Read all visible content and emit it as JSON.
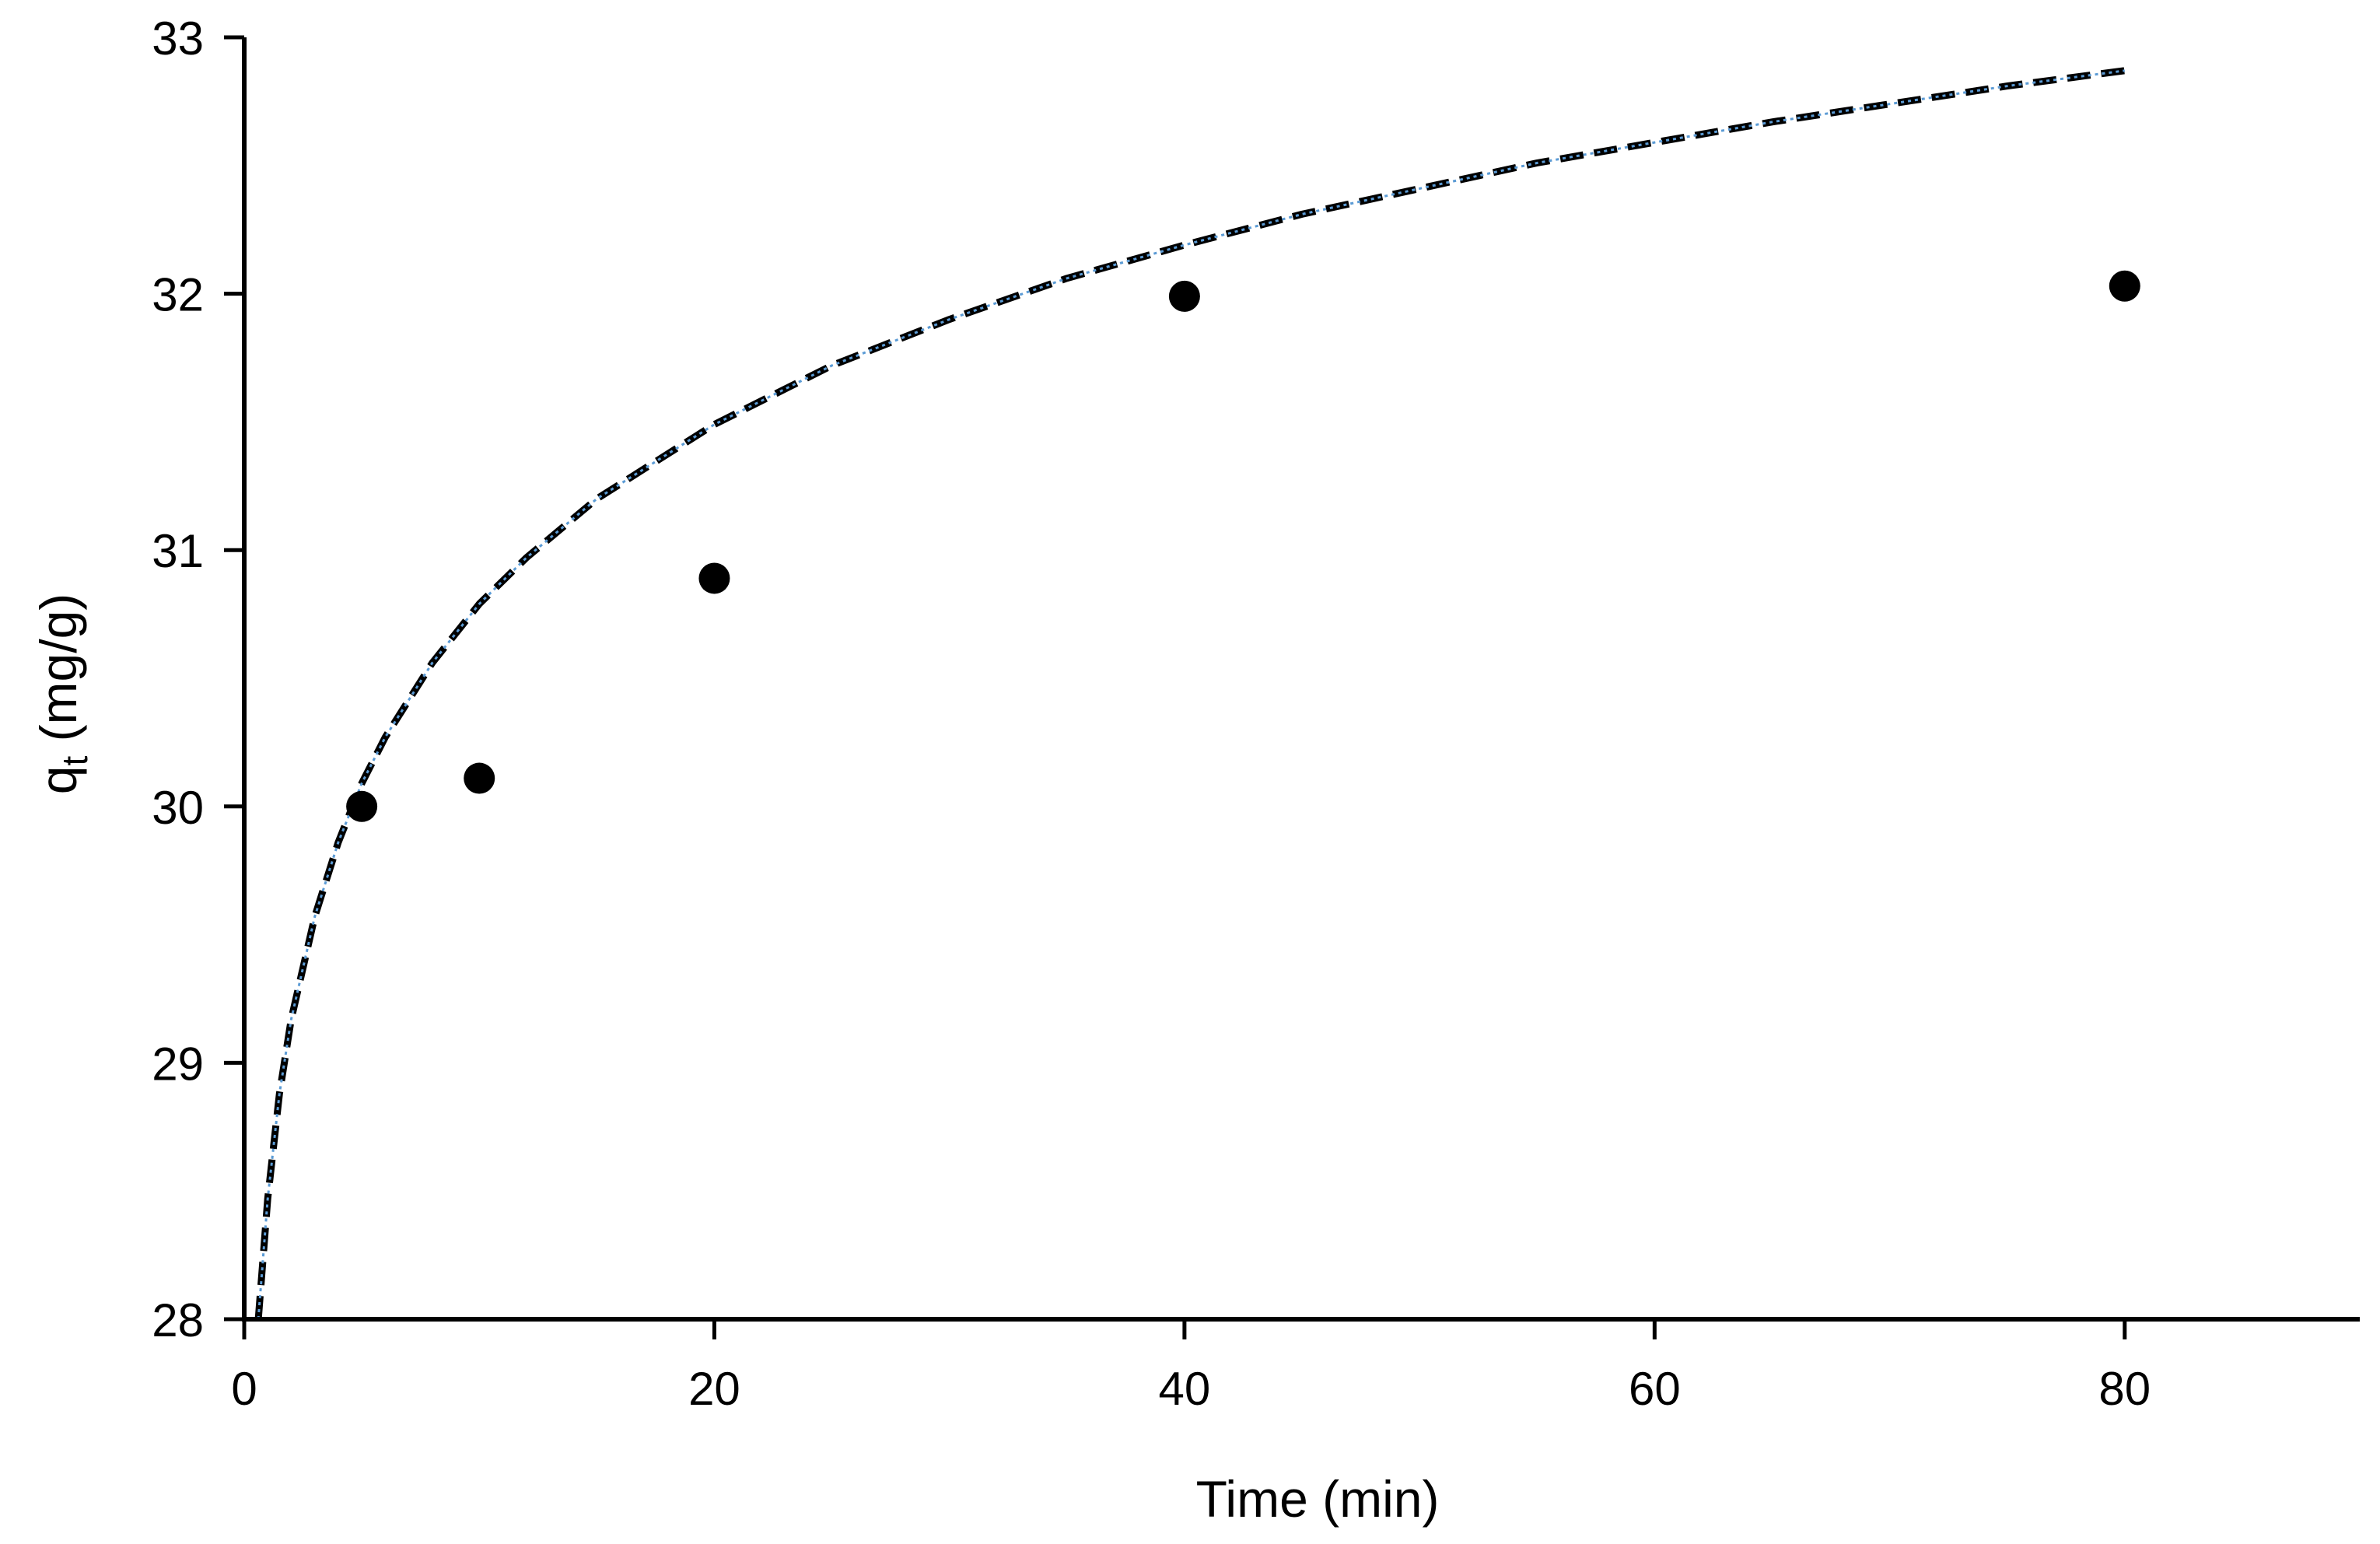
{
  "chart_data": {
    "type": "scatter",
    "xlabel": "Time (min)",
    "ylabel": {
      "main": "q",
      "subscript": "t",
      "unit": " (mg/g)"
    },
    "xlim": [
      0,
      90
    ],
    "ylim": [
      28,
      33
    ],
    "x_ticks": [
      0,
      20,
      40,
      60,
      80
    ],
    "x_tick_labels": [
      "0",
      "20",
      "40",
      "60",
      "80"
    ],
    "y_ticks": [
      28,
      29,
      30,
      31,
      32,
      33
    ],
    "y_tick_labels": [
      "28",
      "29",
      "30",
      "31",
      "32",
      "33"
    ],
    "grid": false,
    "legend": "none",
    "series": [
      {
        "kind": "points",
        "x": [
          5,
          10,
          20,
          40,
          80
        ],
        "y": [
          30.0,
          30.11,
          30.89,
          31.99,
          32.03
        ],
        "color": "#000000"
      },
      {
        "kind": "fit-curve",
        "style": "dashed",
        "color": "#000000",
        "x": [
          0.6,
          1,
          1.5,
          2,
          3,
          4,
          5,
          6,
          8,
          10,
          12,
          15,
          20,
          25,
          30,
          35,
          40,
          45,
          50,
          55,
          60,
          65,
          70,
          75,
          80
        ],
        "y": [
          27.97,
          28.47,
          28.88,
          29.17,
          29.57,
          29.86,
          30.09,
          30.27,
          30.56,
          30.79,
          30.97,
          31.2,
          31.49,
          31.72,
          31.9,
          32.06,
          32.19,
          32.31,
          32.41,
          32.51,
          32.59,
          32.67,
          32.74,
          32.81,
          32.87
        ]
      },
      {
        "kind": "trendline",
        "style": "dotted",
        "color": "#5b9bd5",
        "x": [
          0.6,
          1,
          1.5,
          2,
          3,
          4,
          5,
          6,
          8,
          10,
          12,
          15,
          20,
          25,
          30,
          35,
          40,
          45,
          50,
          55,
          60,
          65,
          70,
          75,
          80
        ],
        "y": [
          27.97,
          28.47,
          28.88,
          29.17,
          29.57,
          29.86,
          30.09,
          30.27,
          30.56,
          30.79,
          30.97,
          31.2,
          31.49,
          31.72,
          31.9,
          32.06,
          32.19,
          32.31,
          32.41,
          32.51,
          32.59,
          32.67,
          32.74,
          32.81,
          32.87
        ]
      }
    ]
  }
}
